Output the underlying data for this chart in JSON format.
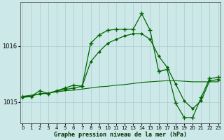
{
  "title": "Graphe pression niveau de la mer (hPa)",
  "bg_color": "#cde8e8",
  "line_color": "#006600",
  "grid_color": "#aacccc",
  "xlim": [
    0,
    23
  ],
  "ylim": [
    1014.62,
    1016.78
  ],
  "yticks": [
    1015,
    1016
  ],
  "xticks": [
    0,
    1,
    2,
    3,
    4,
    5,
    6,
    7,
    8,
    9,
    10,
    11,
    12,
    13,
    14,
    15,
    16,
    17,
    18,
    19,
    20,
    21,
    22,
    23
  ],
  "series1_x": [
    0,
    1,
    2,
    3,
    4,
    5,
    6,
    7,
    8,
    9,
    10,
    11,
    12,
    13,
    14,
    15,
    16,
    17,
    18,
    19,
    20,
    21,
    22,
    23
  ],
  "series1_y": [
    1015.1,
    1015.1,
    1015.2,
    1015.15,
    1015.2,
    1015.25,
    1015.3,
    1015.28,
    1016.05,
    1016.2,
    1016.28,
    1016.3,
    1016.3,
    1016.3,
    1016.58,
    1016.28,
    1015.55,
    1015.58,
    1014.98,
    1014.72,
    1014.72,
    1015.08,
    1015.42,
    1015.44
  ],
  "series2_x": [
    0,
    1,
    2,
    3,
    4,
    5,
    6,
    7,
    8,
    9,
    10,
    11,
    12,
    13,
    14,
    15,
    16,
    17,
    18,
    19,
    20,
    21,
    22,
    23
  ],
  "series2_y": [
    1015.08,
    1015.1,
    1015.15,
    1015.15,
    1015.2,
    1015.22,
    1015.25,
    1015.28,
    1015.72,
    1015.9,
    1016.05,
    1016.12,
    1016.18,
    1016.22,
    1016.22,
    1016.12,
    1015.82,
    1015.62,
    1015.32,
    1015.02,
    1014.88,
    1015.02,
    1015.38,
    1015.4
  ],
  "series3_x": [
    0,
    1,
    2,
    3,
    4,
    5,
    6,
    7,
    8,
    9,
    10,
    11,
    12,
    13,
    14,
    15,
    16,
    17,
    18,
    19,
    20,
    21,
    22,
    23
  ],
  "series3_y": [
    1015.1,
    1015.12,
    1015.14,
    1015.16,
    1015.18,
    1015.2,
    1015.21,
    1015.23,
    1015.25,
    1015.27,
    1015.28,
    1015.3,
    1015.31,
    1015.33,
    1015.35,
    1015.36,
    1015.37,
    1015.38,
    1015.38,
    1015.37,
    1015.36,
    1015.36,
    1015.36,
    1015.36
  ],
  "xlabel_fontsize": 6.0,
  "ylabel_fontsize": 6.0,
  "tick_labelsize": 5.5,
  "title_fontsize": 6.5
}
